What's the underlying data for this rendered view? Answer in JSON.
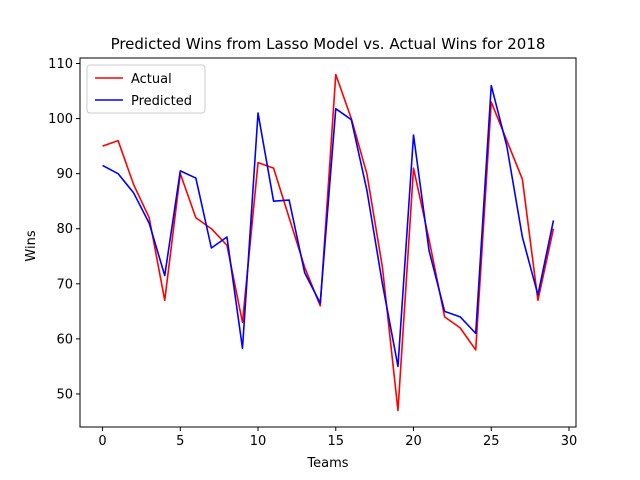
{
  "chart_data": {
    "type": "line",
    "title": "Predicted Wins from Lasso Model vs. Actual Wins for 2018",
    "xlabel": "Teams",
    "ylabel": "Wins",
    "xlim": [
      -1.45,
      30.45
    ],
    "ylim": [
      44,
      111
    ],
    "xticks": [
      0,
      5,
      10,
      15,
      20,
      25,
      30
    ],
    "yticks": [
      50,
      60,
      70,
      80,
      90,
      100,
      110
    ],
    "grid": false,
    "legend_position": "upper left",
    "x": [
      0,
      1,
      2,
      3,
      4,
      5,
      6,
      7,
      8,
      9,
      10,
      11,
      12,
      13,
      14,
      15,
      16,
      17,
      18,
      19,
      20,
      21,
      22,
      23,
      24,
      25,
      26,
      27,
      28,
      29
    ],
    "series": [
      {
        "name": "Actual",
        "color": "#ff0000",
        "values": [
          95,
          96,
          88,
          82,
          67,
          90,
          82,
          80,
          77,
          63,
          92,
          91,
          82,
          73,
          66,
          108,
          100,
          90,
          73,
          47,
          91,
          78,
          64,
          62,
          58,
          103,
          96,
          89,
          67,
          80
        ]
      },
      {
        "name": "Predicted",
        "color": "#0000ff",
        "values": [
          91.5,
          90,
          86.5,
          81,
          71.5,
          90.5,
          89.2,
          76.5,
          78.5,
          58.3,
          101,
          85,
          85.2,
          72,
          66.5,
          101.8,
          99.8,
          87,
          70,
          55,
          97,
          76,
          65,
          64,
          61,
          106,
          95,
          78.5,
          68,
          81.5
        ]
      }
    ]
  }
}
